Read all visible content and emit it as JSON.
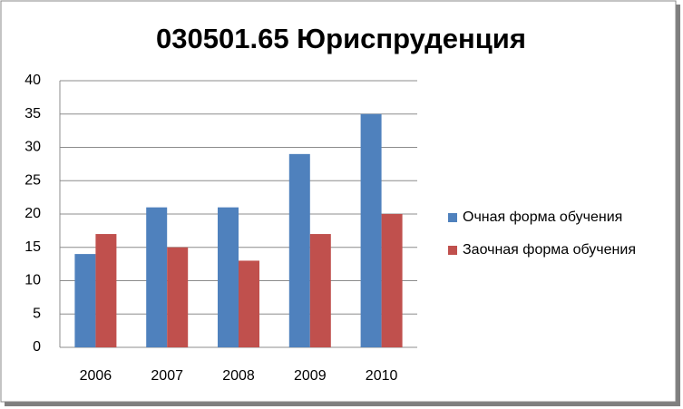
{
  "chart_data": {
    "type": "bar",
    "title": "030501.65 Юриспруденция",
    "categories": [
      "2006",
      "2007",
      "2008",
      "2009",
      "2010"
    ],
    "series": [
      {
        "name": "Очная форма обучения",
        "color": "#4f81bd",
        "values": [
          14,
          21,
          21,
          29,
          35
        ]
      },
      {
        "name": "Заочная форма обучения",
        "color": "#c0504d",
        "values": [
          17,
          15,
          13,
          17,
          20
        ]
      }
    ],
    "ylim": [
      0,
      40
    ],
    "yticks": [
      0,
      5,
      10,
      15,
      20,
      25,
      30,
      35,
      40
    ],
    "grid": true,
    "legend": "right"
  }
}
